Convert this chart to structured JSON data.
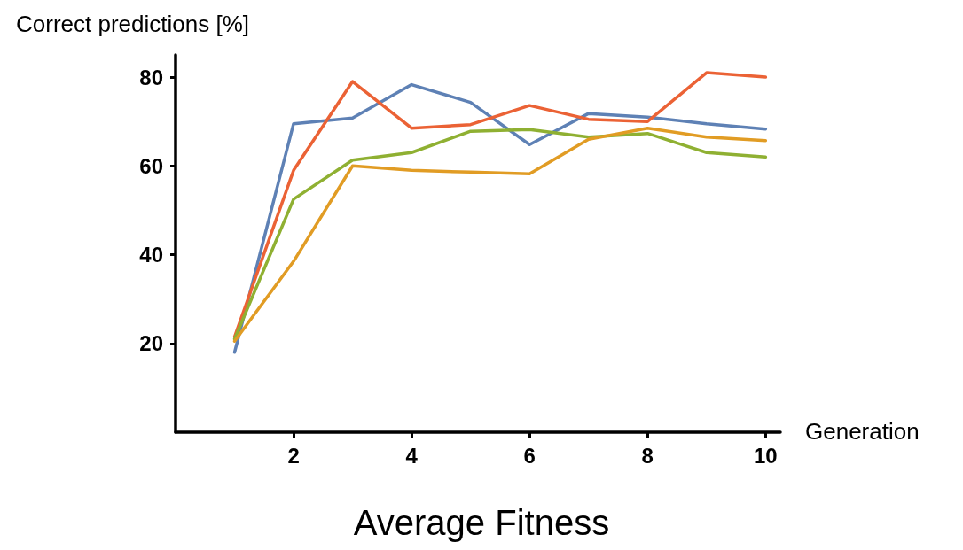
{
  "chart_data": {
    "type": "line",
    "title": "Average Fitness",
    "xlabel": "Generation",
    "ylabel": "Correct predictions [%]",
    "x": [
      1,
      2,
      3,
      4,
      5,
      6,
      7,
      8,
      9,
      10
    ],
    "series": [
      {
        "color": "#5e81b5",
        "values": [
          18,
          69.5,
          70.8,
          78.3,
          74.3,
          64.8,
          71.8,
          71,
          69.5,
          68.3
        ]
      },
      {
        "color": "#eb6235",
        "values": [
          21.5,
          59,
          79,
          68.5,
          69.3,
          73.6,
          70.5,
          70,
          81,
          80
        ]
      },
      {
        "color": "#8fb032",
        "values": [
          21,
          52.5,
          61.3,
          63,
          67.8,
          68.2,
          66.5,
          67.3,
          63,
          62
        ]
      },
      {
        "color": "#e19c24",
        "values": [
          20.5,
          38.5,
          60,
          59,
          58.6,
          58.2,
          66,
          68.5,
          66.5,
          65.7
        ]
      }
    ],
    "xlim": [
      0,
      10.25
    ],
    "xticks": [
      2,
      4,
      6,
      8,
      10
    ],
    "ylim": [
      0,
      85
    ],
    "yticks": [
      20,
      40,
      60,
      80
    ],
    "grid": false,
    "marker": "none",
    "line_style": "solid"
  }
}
